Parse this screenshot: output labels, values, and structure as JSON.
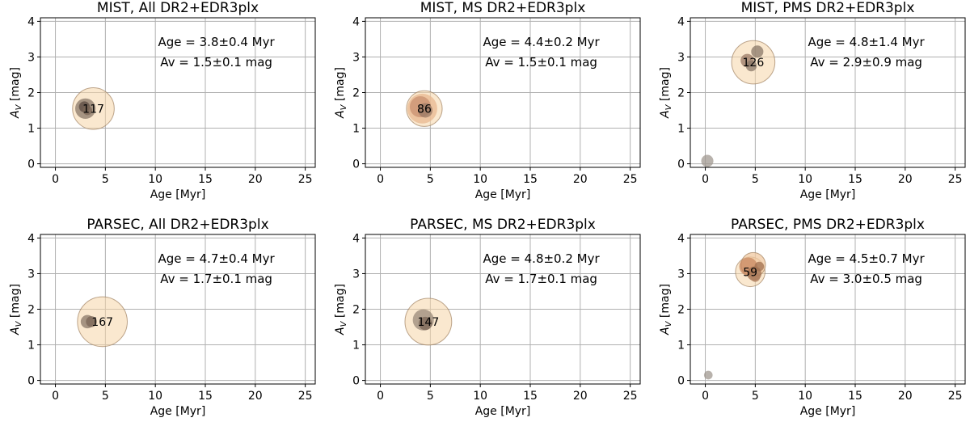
{
  "chart_data": [
    {
      "type": "scatter",
      "title": "MIST, All DR2+EDR3plx",
      "xlabel": "Age [Myr]",
      "ylabel": "A_V [mag]",
      "xlim": [
        -1.5,
        26
      ],
      "ylim": [
        -0.1,
        4.1
      ],
      "xticks": [
        0,
        5,
        10,
        15,
        20,
        25
      ],
      "yticks": [
        0,
        1,
        2,
        3,
        4
      ],
      "grid": true,
      "annotation_lines": [
        "Age = 3.8±0.4 Myr",
        "Av = 1.5±0.1 mag"
      ],
      "points": [
        {
          "age": 3.8,
          "av": 1.55,
          "size": 117,
          "label": "117",
          "color": "#f5d6a8",
          "edge": "#a08060"
        },
        {
          "age": 3.0,
          "av": 1.55,
          "size": 28,
          "color": "#8a7868"
        },
        {
          "age": 2.9,
          "av": 1.6,
          "size": 8,
          "color": "#5a4a40"
        },
        {
          "age": 3.2,
          "av": 1.5,
          "size": 6,
          "color": "#7a6656"
        }
      ]
    },
    {
      "type": "scatter",
      "title": "MIST, MS DR2+EDR3plx",
      "xlabel": "Age [Myr]",
      "ylabel": "A_V [mag]",
      "xlim": [
        -1.5,
        26
      ],
      "ylim": [
        -0.1,
        4.1
      ],
      "xticks": [
        0,
        5,
        10,
        15,
        20,
        25
      ],
      "yticks": [
        0,
        1,
        2,
        3,
        4
      ],
      "grid": true,
      "annotation_lines": [
        "Age = 4.4±0.2 Myr",
        "Av = 1.5±0.1 mag"
      ],
      "points": [
        {
          "age": 4.4,
          "av": 1.55,
          "size": 86,
          "label": "86",
          "color": "#f5d6a8",
          "edge": "#a08060"
        },
        {
          "age": 4.2,
          "av": 1.55,
          "size": 60,
          "color": "#e8b890"
        },
        {
          "age": 4.0,
          "av": 1.6,
          "size": 30,
          "color": "#c89070"
        },
        {
          "age": 4.5,
          "av": 1.5,
          "size": 14,
          "color": "#9a7a66"
        }
      ]
    },
    {
      "type": "scatter",
      "title": "MIST, PMS DR2+EDR3plx",
      "xlabel": "Age [Myr]",
      "ylabel": "A_V [mag]",
      "xlim": [
        -1.5,
        26
      ],
      "ylim": [
        -0.1,
        4.1
      ],
      "xticks": [
        0,
        5,
        10,
        15,
        20,
        25
      ],
      "yticks": [
        0,
        1,
        2,
        3,
        4
      ],
      "grid": true,
      "annotation_lines": [
        "Age = 4.8±1.4 Myr",
        "Av = 2.9±0.9 mag"
      ],
      "points": [
        {
          "age": 4.8,
          "av": 2.85,
          "size": 126,
          "label": "126",
          "color": "#f5d6a8",
          "edge": "#a08060"
        },
        {
          "age": 4.2,
          "av": 2.9,
          "size": 12,
          "color": "#9a7a66"
        },
        {
          "age": 5.2,
          "av": 3.15,
          "size": 10,
          "color": "#8a7868"
        },
        {
          "age": 4.6,
          "av": 2.75,
          "size": 8,
          "color": "#8a7868"
        },
        {
          "age": 0.2,
          "av": 0.08,
          "size": 10,
          "color": "#a09890"
        }
      ]
    },
    {
      "type": "scatter",
      "title": "PARSEC, All DR2+EDR3plx",
      "xlabel": "Age [Myr]",
      "ylabel": "A_V [mag]",
      "xlim": [
        -1.5,
        26
      ],
      "ylim": [
        -0.1,
        4.1
      ],
      "xticks": [
        0,
        5,
        10,
        15,
        20,
        25
      ],
      "yticks": [
        0,
        1,
        2,
        3,
        4
      ],
      "grid": true,
      "annotation_lines": [
        "Age = 4.7±0.4 Myr",
        "Av = 1.7±0.1 mag"
      ],
      "points": [
        {
          "age": 4.7,
          "av": 1.65,
          "size": 167,
          "label": "167",
          "color": "#f5d6a8",
          "edge": "#a08060"
        },
        {
          "age": 3.2,
          "av": 1.65,
          "size": 12,
          "color": "#8a7868"
        },
        {
          "age": 3.6,
          "av": 1.65,
          "size": 8,
          "color": "#7a6656"
        }
      ]
    },
    {
      "type": "scatter",
      "title": "PARSEC, MS DR2+EDR3plx",
      "xlabel": "Age [Myr]",
      "ylabel": "A_V [mag]",
      "xlim": [
        -1.5,
        26
      ],
      "ylim": [
        -0.1,
        4.1
      ],
      "xticks": [
        0,
        5,
        10,
        15,
        20,
        25
      ],
      "yticks": [
        0,
        1,
        2,
        3,
        4
      ],
      "grid": true,
      "annotation_lines": [
        "Age = 4.8±0.2 Myr",
        "Av = 1.7±0.1 mag"
      ],
      "points": [
        {
          "age": 4.8,
          "av": 1.65,
          "size": 147,
          "label": "147",
          "color": "#f5d6a8",
          "edge": "#a08060"
        },
        {
          "age": 4.3,
          "av": 1.7,
          "size": 30,
          "color": "#9a8a7a"
        },
        {
          "age": 4.5,
          "av": 1.6,
          "size": 12,
          "color": "#7a6656"
        }
      ]
    },
    {
      "type": "scatter",
      "title": "PARSEC, PMS DR2+EDR3plx",
      "xlabel": "Age [Myr]",
      "ylabel": "A_V [mag]",
      "xlim": [
        -1.5,
        26
      ],
      "ylim": [
        -0.1,
        4.1
      ],
      "xticks": [
        0,
        5,
        10,
        15,
        20,
        25
      ],
      "yticks": [
        0,
        1,
        2,
        3,
        4
      ],
      "grid": true,
      "annotation_lines": [
        "Age = 4.5±0.7 Myr",
        "Av = 3.0±0.5 mag"
      ],
      "points": [
        {
          "age": 4.5,
          "av": 3.05,
          "size": 59,
          "label": "59",
          "color": "#f5d6a8",
          "edge": "#a08060"
        },
        {
          "age": 4.8,
          "av": 3.25,
          "size": 40,
          "color": "#f0c8a0",
          "edge": "#a08060"
        },
        {
          "age": 4.3,
          "av": 3.2,
          "size": 22,
          "color": "#c88860"
        },
        {
          "age": 4.9,
          "av": 3.0,
          "size": 14,
          "color": "#a07050"
        },
        {
          "age": 5.4,
          "av": 3.2,
          "size": 6,
          "color": "#a07050"
        },
        {
          "age": 5.0,
          "av": 2.9,
          "size": 6,
          "color": "#b08060"
        },
        {
          "age": 0.3,
          "av": 0.15,
          "size": 5,
          "color": "#a09890"
        }
      ]
    }
  ]
}
